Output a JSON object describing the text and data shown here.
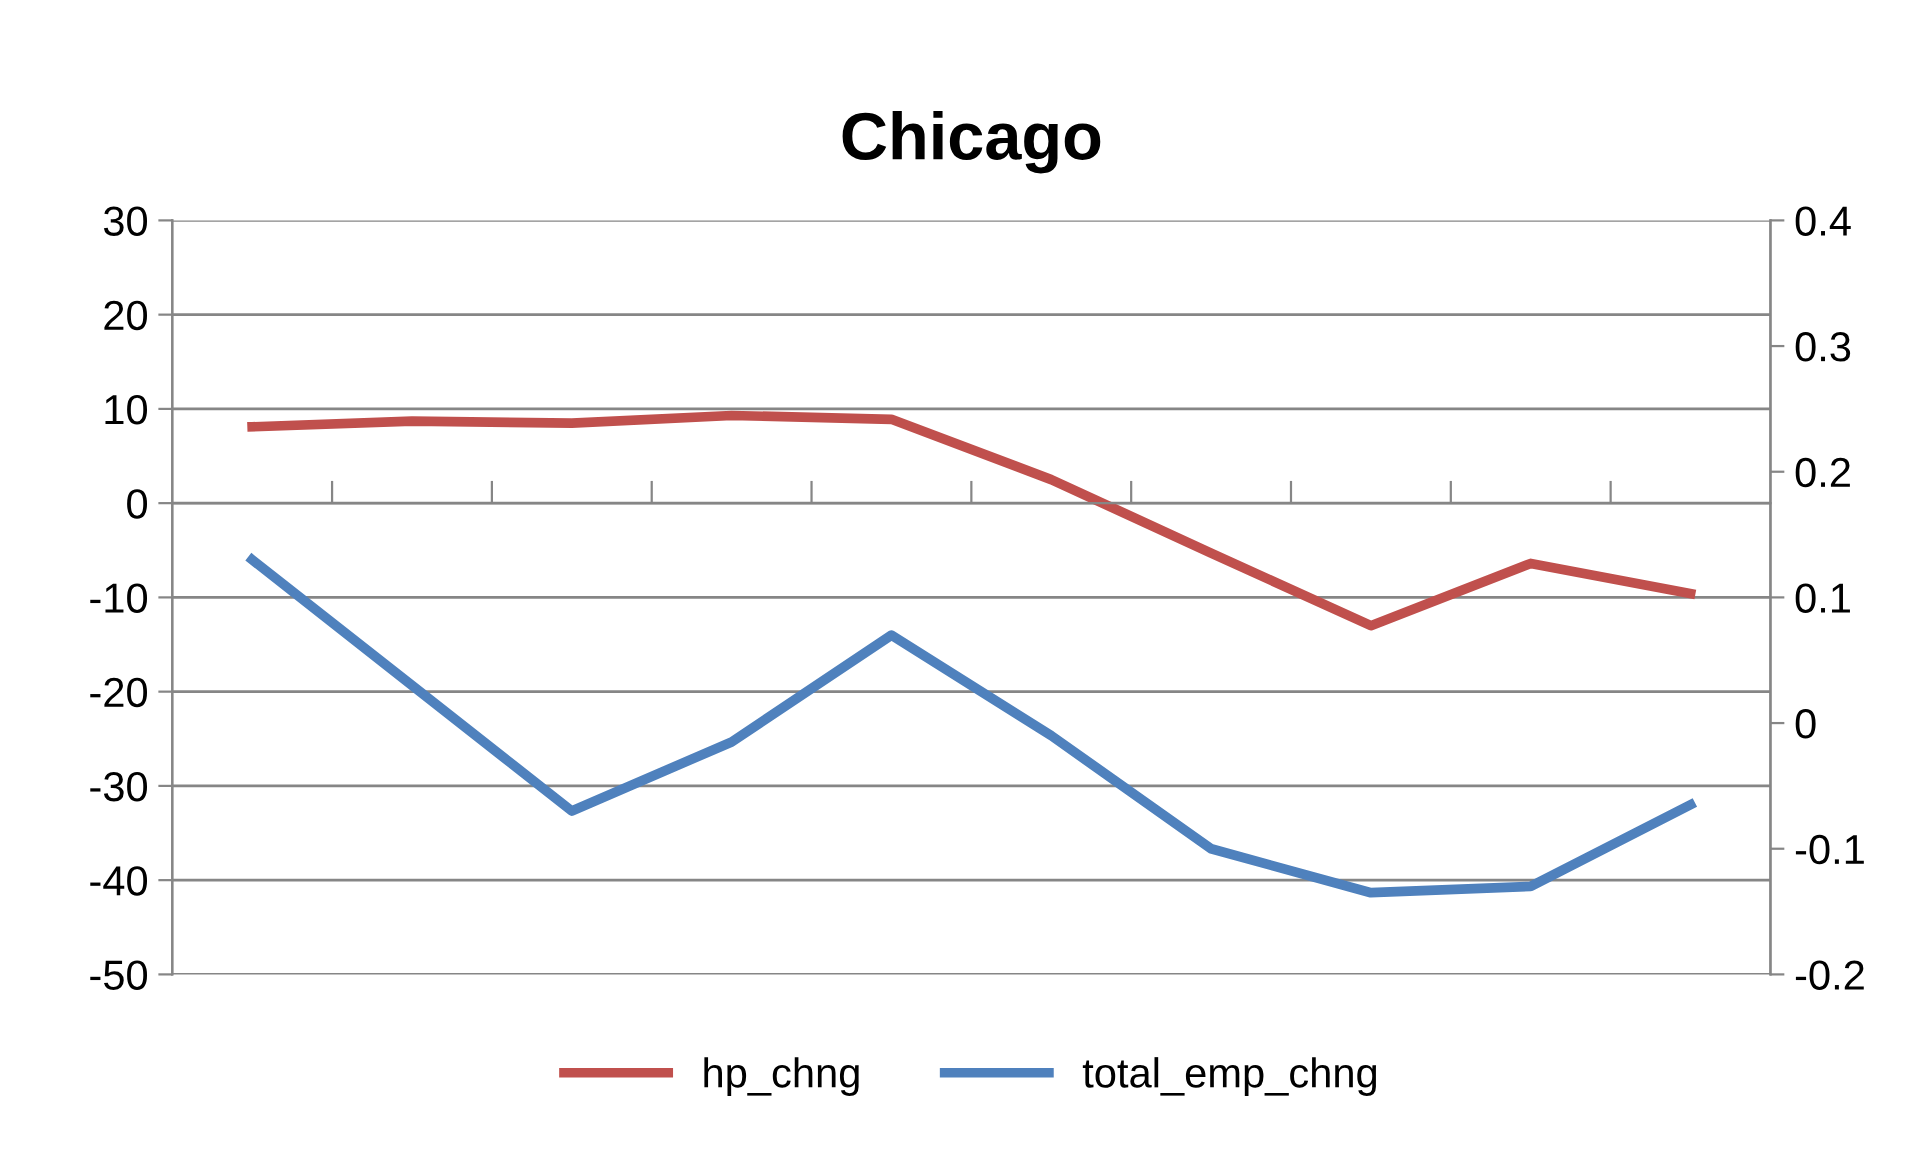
{
  "chart_data": {
    "type": "line",
    "title": "Chicago",
    "categories": [
      null,
      null,
      null,
      null,
      null,
      null,
      null,
      null,
      null,
      null
    ],
    "series": [
      {
        "name": "hp_chng",
        "color": "#c0504d",
        "values": [
          8.1,
          8.7,
          8.5,
          9.3,
          8.9,
          2.5,
          -5.3,
          -13.0,
          -6.4,
          -9.6
        ]
      },
      {
        "name": "total_emp_chng",
        "color": "#4f81bd",
        "axis": "y2",
        "values": [
          0.13,
          0.03,
          -0.07,
          -0.015,
          0.07,
          -0.01,
          -0.1,
          -0.135,
          -0.13,
          -0.065
        ]
      }
    ],
    "ylim": [
      -50,
      30
    ],
    "yticks": [
      -50,
      -40,
      -30,
      -20,
      -10,
      0,
      10,
      20,
      30
    ],
    "y2lim": [
      -0.2,
      0.4
    ],
    "y2ticks": [
      -0.2,
      -0.1,
      0,
      0.1,
      0.2,
      0.3,
      0.4
    ],
    "grid": "y",
    "legend": "bottom",
    "marker": "none",
    "line_style": "solid"
  }
}
